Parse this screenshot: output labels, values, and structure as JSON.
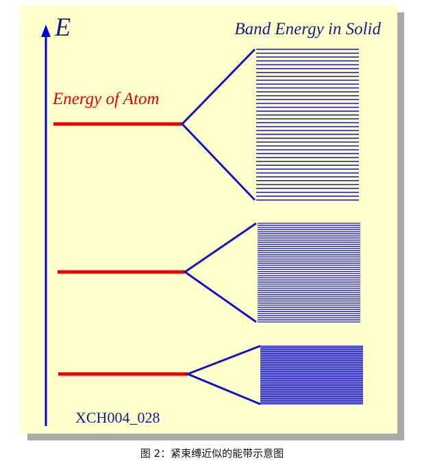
{
  "figure": {
    "axis_label": "E",
    "title": "Band Energy in Solid",
    "atom_label": "Energy of Atom",
    "figure_id": "XCH004_028"
  },
  "caption": "图 2：紧束缚近似的能带示意图",
  "colors": {
    "panel_background": "#ffffcc",
    "panel_shadow": "#aaaaaa",
    "axis": "#0000dd",
    "atom_level": "#ee0000",
    "band_lines": "#1111cc",
    "label_blue": "#1a1a8c",
    "label_red": "#ee0000"
  },
  "diagram": {
    "bands": [
      {
        "name": "upper-band",
        "line_count": 40
      },
      {
        "name": "middle-band",
        "line_count": 48
      },
      {
        "name": "lower-band",
        "line_count": 60
      }
    ]
  }
}
